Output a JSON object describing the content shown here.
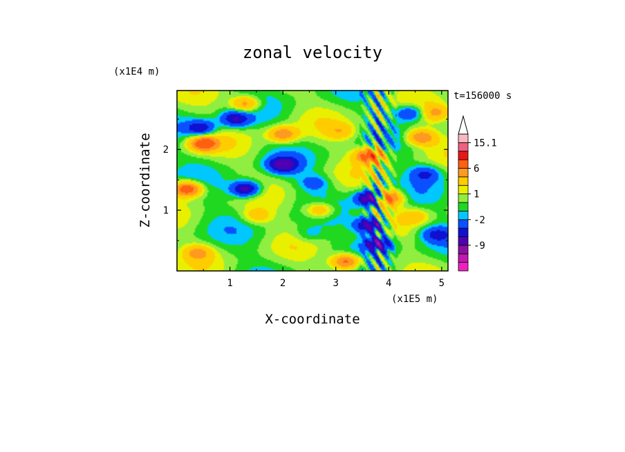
{
  "chart_data": {
    "type": "heatmap",
    "title": "zonal velocity",
    "xlabel": "X-coordinate",
    "ylabel": "Z-coordinate",
    "x_unit": "(x1E5 m)",
    "y_unit": "(x1E4 m)",
    "time_label": "t=156000 s",
    "xlim": [
      0,
      5.12
    ],
    "ylim": [
      0,
      2.97
    ],
    "x_ticks": [
      "1",
      "2",
      "3",
      "4",
      "5"
    ],
    "x_tick_values": [
      1,
      2,
      3,
      4,
      5
    ],
    "y_ticks": [
      "1",
      "2"
    ],
    "y_tick_values": [
      1,
      2
    ],
    "colorbar": {
      "levels": [
        -15,
        -12,
        -9,
        -6,
        -4,
        -2,
        -1,
        0,
        1,
        2,
        4,
        6,
        9,
        12,
        15.1
      ],
      "colors": [
        "#f020c0",
        "#c018b0",
        "#8c10a0",
        "#5000b0",
        "#1010d0",
        "#0a50ff",
        "#00c8ff",
        "#20d820",
        "#90ee40",
        "#e8f000",
        "#ffcc00",
        "#ff9a20",
        "#ff6010",
        "#e81818",
        "#f06080",
        "#f8b8c0"
      ],
      "tick_labels": [
        "15.1",
        "6",
        "1",
        "-2",
        "-9"
      ],
      "tick_values": [
        15.1,
        6,
        1,
        -2,
        -9
      ],
      "extend": "max"
    },
    "features": [
      {
        "x": 0.5,
        "z": 2.1,
        "value": 8
      },
      {
        "x": 0.45,
        "z": 2.35,
        "value": -6
      },
      {
        "x": 1.1,
        "z": 2.5,
        "value": -6
      },
      {
        "x": 1.3,
        "z": 2.75,
        "value": 6
      },
      {
        "x": 2.0,
        "z": 1.75,
        "value": -7
      },
      {
        "x": 2.0,
        "z": 2.25,
        "value": 6
      },
      {
        "x": 1.3,
        "z": 1.35,
        "value": -8
      },
      {
        "x": 0.2,
        "z": 1.35,
        "value": 9
      },
      {
        "x": 2.7,
        "z": 1.0,
        "value": 5
      },
      {
        "x": 2.6,
        "z": 1.45,
        "value": -3
      },
      {
        "x": 3.7,
        "z": 1.2,
        "value": -12
      },
      {
        "x": 3.95,
        "z": 1.2,
        "value": 11
      },
      {
        "x": 3.65,
        "z": 0.75,
        "value": -9
      },
      {
        "x": 3.65,
        "z": 1.9,
        "value": 8
      },
      {
        "x": 3.8,
        "z": 0.45,
        "value": -8
      },
      {
        "x": 4.4,
        "z": 2.6,
        "value": -5
      },
      {
        "x": 4.6,
        "z": 2.2,
        "value": 6
      },
      {
        "x": 4.7,
        "z": 1.6,
        "value": -4
      },
      {
        "x": 4.9,
        "z": 0.6,
        "value": -4
      },
      {
        "x": 3.2,
        "z": 0.15,
        "value": 8
      },
      {
        "x": 0.4,
        "z": 0.3,
        "value": 4
      },
      {
        "x": 2.5,
        "z": 0.6,
        "value": -2
      },
      {
        "x": 1.5,
        "z": 0.9,
        "value": 3
      },
      {
        "x": 4.5,
        "z": 0.9,
        "value": 3
      },
      {
        "x": 4.9,
        "z": 2.6,
        "value": 4
      },
      {
        "x": 3.1,
        "z": 2.3,
        "value": 3
      }
    ]
  }
}
